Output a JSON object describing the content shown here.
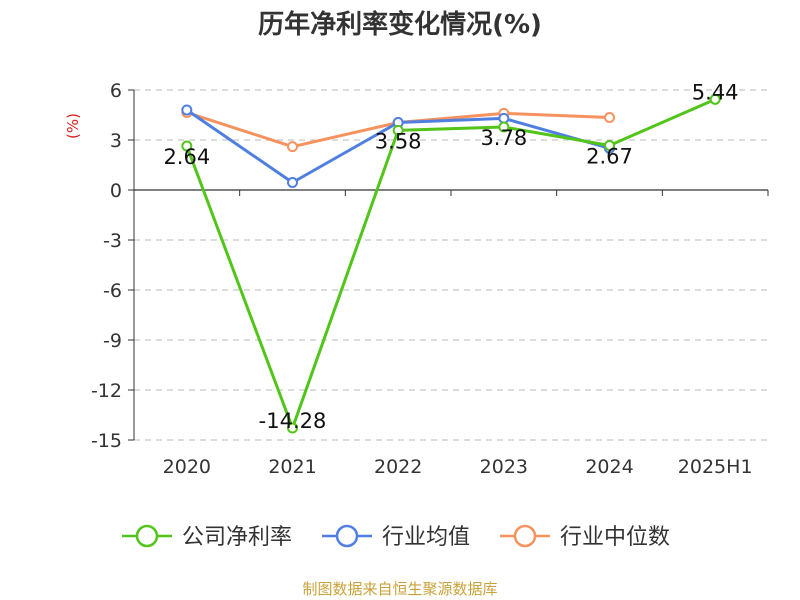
{
  "chart_data": {
    "type": "line",
    "title": "历年净利率变化情况(%)",
    "ylabel": "(%)",
    "categories": [
      "2020",
      "2021",
      "2022",
      "2023",
      "2024",
      "2025H1"
    ],
    "yticks": [
      6,
      3,
      0,
      -3,
      -6,
      -9,
      -12,
      -15
    ],
    "ylim": [
      -15,
      6
    ],
    "grid": true,
    "legend_position": "bottom",
    "series": [
      {
        "name": "公司净利率",
        "color": "#52c41a",
        "values": [
          2.64,
          -14.28,
          3.58,
          3.78,
          2.67,
          5.44
        ],
        "labels": [
          "2.64",
          "-14.28",
          "3.58",
          "3.78",
          "2.67",
          "5.44"
        ]
      },
      {
        "name": "行业均值",
        "color": "#4f7fe0",
        "values": [
          4.8,
          0.45,
          4.05,
          4.3,
          2.5,
          null
        ]
      },
      {
        "name": "行业中位数",
        "color": "#f5925e",
        "values": [
          4.65,
          2.6,
          4.05,
          4.6,
          4.35,
          null
        ]
      }
    ]
  },
  "source": "制图数据来自恒生聚源数据库"
}
